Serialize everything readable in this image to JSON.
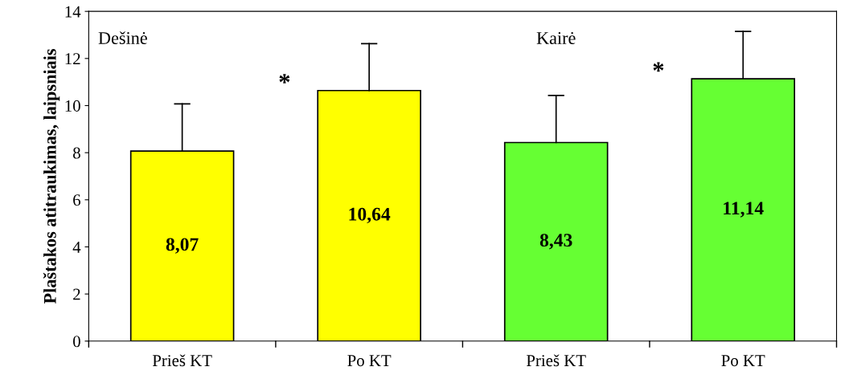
{
  "chart_data": {
    "type": "bar",
    "ylabel": "Plaštakos atitraukimas, laipsniais",
    "categories": [
      "Prieš KT",
      "Po KT",
      "Prieš KT",
      "Po KT"
    ],
    "values": [
      8.07,
      10.64,
      8.43,
      11.14
    ],
    "colors": [
      "#ffff00",
      "#ffff00",
      "#66ff33",
      "#66ff33"
    ],
    "value_labels": [
      "8,07",
      "10,64",
      "8,43",
      "11,14"
    ],
    "errors": [
      [
        8.07,
        10.07
      ],
      [
        10.64,
        12.63
      ],
      [
        8.43,
        10.43
      ],
      [
        11.14,
        13.15
      ]
    ],
    "ylim": [
      0,
      14
    ],
    "yticks": [
      0,
      2,
      4,
      6,
      8,
      10,
      12,
      14
    ],
    "annotations": [
      "Dešinė",
      "Kairė",
      "*",
      "*"
    ],
    "grid": false,
    "legend": false
  }
}
